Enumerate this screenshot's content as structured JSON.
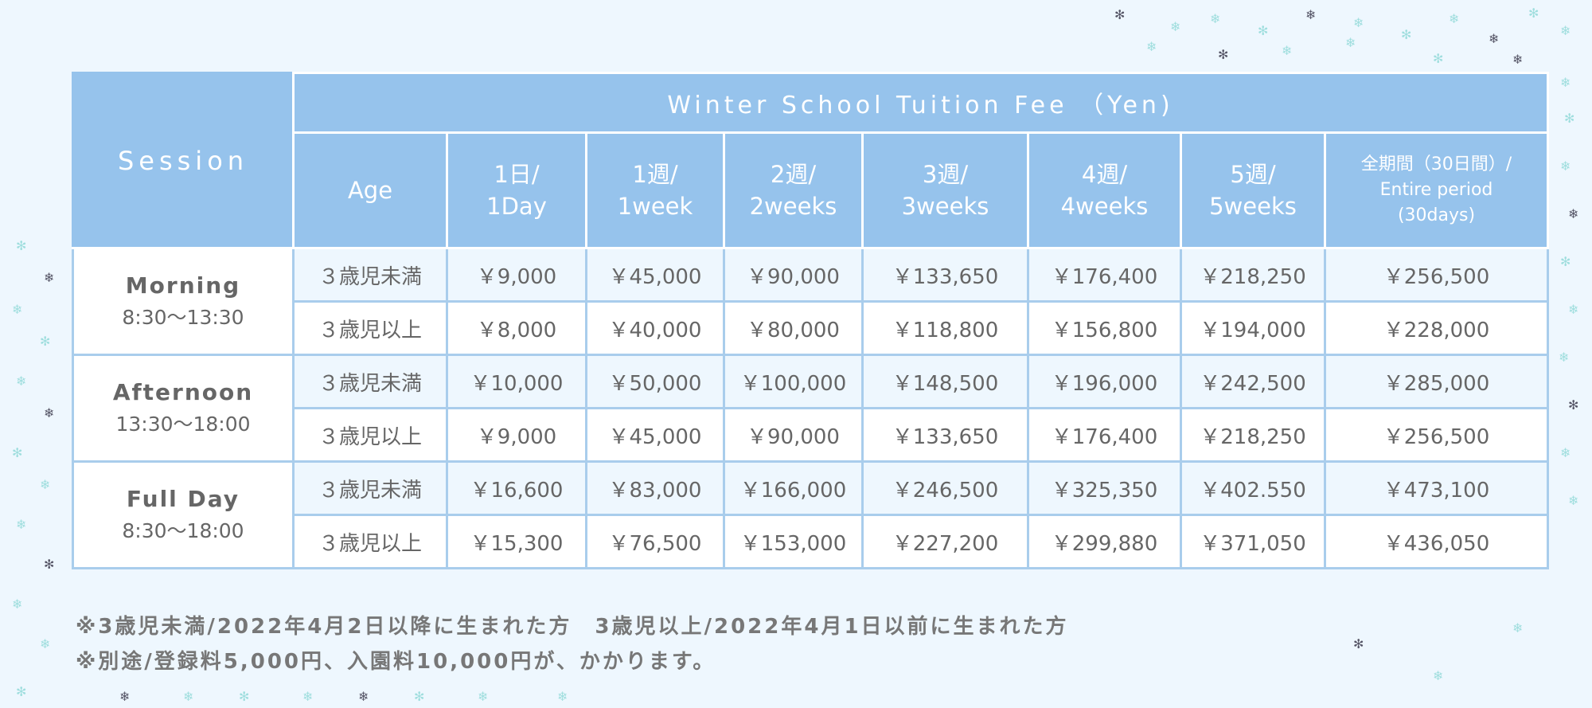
{
  "header": {
    "session": "Session",
    "title": "Winter School Tuition Fee （Yen)",
    "age": "Age",
    "columns": [
      [
        "1日/",
        "1Day"
      ],
      [
        "1週/",
        "1week"
      ],
      [
        "2週/",
        "2weeks"
      ],
      [
        "3週/",
        "3weeks"
      ],
      [
        "4週/",
        "4weeks"
      ],
      [
        "5週/",
        "5weeks"
      ],
      [
        "全期間（30日間）/",
        "Entire period",
        "(30days)"
      ]
    ]
  },
  "sessions": [
    {
      "name": "Morning",
      "time": "8:30〜13:30",
      "rows": [
        {
          "age": "３歳児未満",
          "fees": [
            "￥9,000",
            "￥45,000",
            "￥90,000",
            "￥133,650",
            "￥176,400",
            "￥218,250",
            "￥256,500"
          ]
        },
        {
          "age": "３歳児以上",
          "fees": [
            "￥8,000",
            "￥40,000",
            "￥80,000",
            "￥118,800",
            "￥156,800",
            "￥194,000",
            "￥228,000"
          ]
        }
      ]
    },
    {
      "name": "Afternoon",
      "time": "13:30〜18:00",
      "rows": [
        {
          "age": "３歳児未満",
          "fees": [
            "￥10,000",
            "￥50,000",
            "￥100,000",
            "￥148,500",
            "￥196,000",
            "￥242,500",
            "￥285,000"
          ]
        },
        {
          "age": "３歳児以上",
          "fees": [
            "￥9,000",
            "￥45,000",
            "￥90,000",
            "￥133,650",
            "￥176,400",
            "￥218,250",
            "￥256,500"
          ]
        }
      ]
    },
    {
      "name": "Full Day",
      "time": "8:30〜18:00",
      "rows": [
        {
          "age": "３歳児未満",
          "fees": [
            "￥16,600",
            "￥83,000",
            "￥166,000",
            "￥246,500",
            "￥325,350",
            "￥402.550",
            "￥473,100"
          ]
        },
        {
          "age": "３歳児以上",
          "fees": [
            "￥15,300",
            "￥76,500",
            "￥153,000",
            "￥227,200",
            "￥299,880",
            "￥371,050",
            "￥436,050"
          ]
        }
      ]
    }
  ],
  "notes": [
    "※3歳児未満/2022年4月2日以降に生まれた方　3歳児以上/2022年4月1日以前に生まれた方",
    "※別途/登録料5,000円、入園料10,000円が、かかります。"
  ],
  "colors": {
    "header": "#96c3ec",
    "border": "#a9cdec",
    "row_alt": "#eef7fe",
    "background": "#eef7fe"
  }
}
